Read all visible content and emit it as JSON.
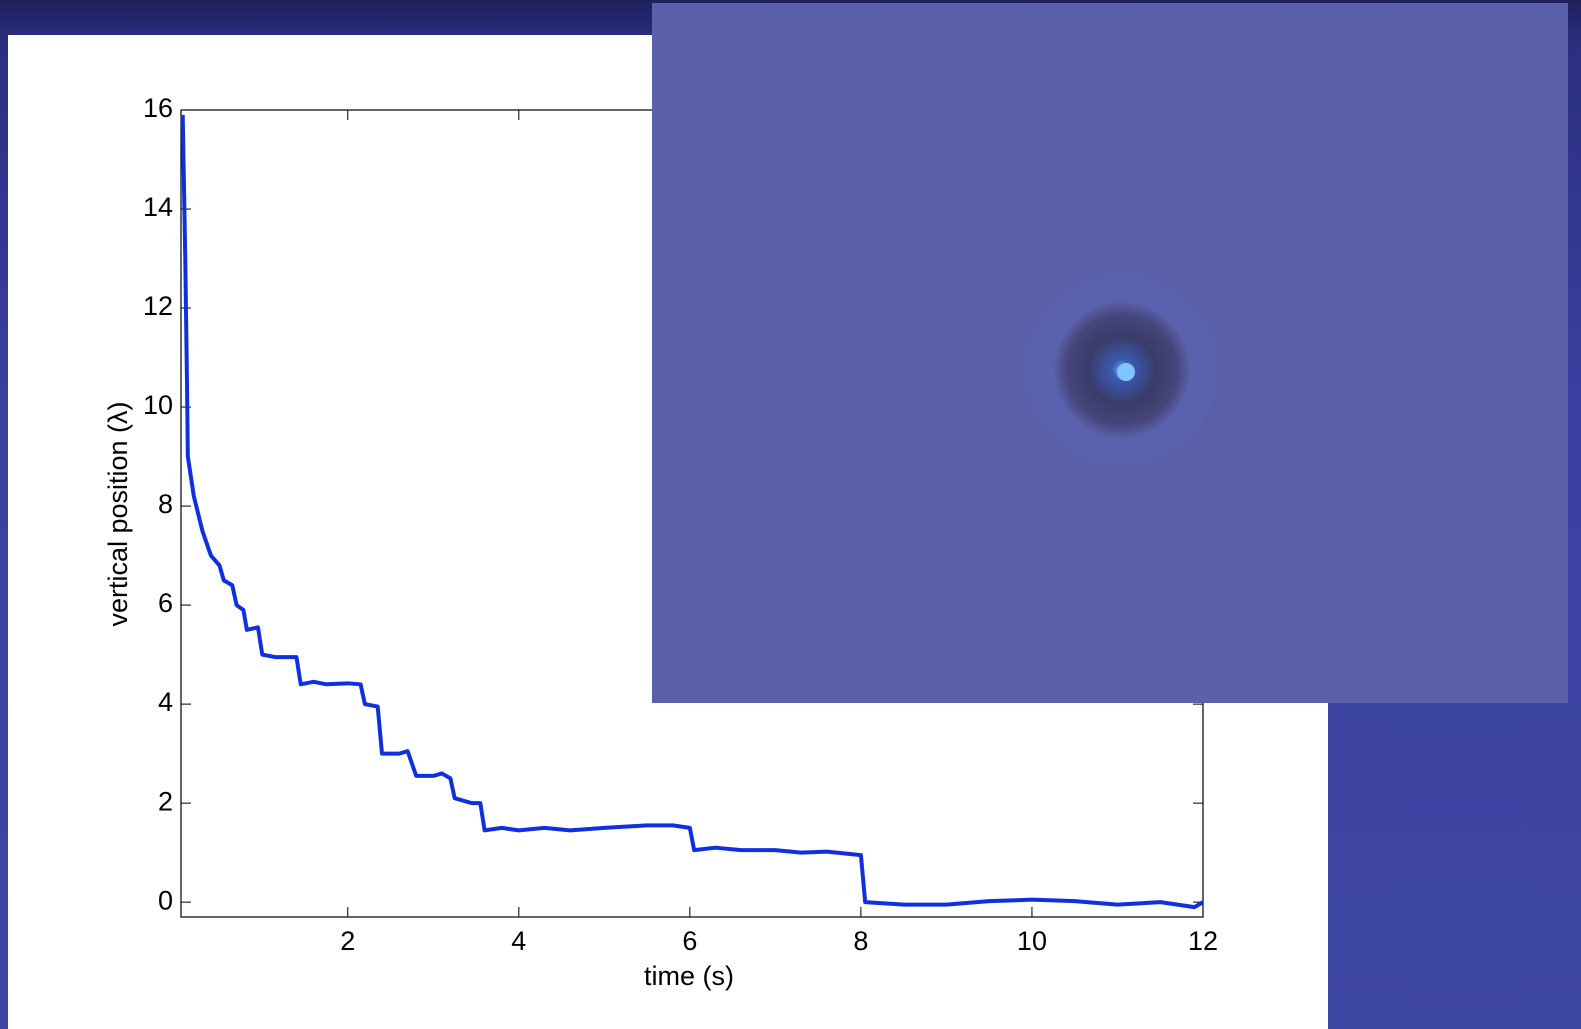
{
  "chart_data": {
    "type": "line",
    "x_label": "time (s)",
    "y_label": "vertical position (λ)",
    "x": [
      0.07,
      0.1,
      0.12,
      0.13,
      0.2,
      0.3,
      0.4,
      0.5,
      0.55,
      0.65,
      0.7,
      0.78,
      0.82,
      0.95,
      1.0,
      1.15,
      1.4,
      1.45,
      1.6,
      1.75,
      2.0,
      2.15,
      2.2,
      2.35,
      2.4,
      2.6,
      2.7,
      2.8,
      3.0,
      3.1,
      3.2,
      3.25,
      3.45,
      3.55,
      3.6,
      3.8,
      4.0,
      4.3,
      4.6,
      5.0,
      5.5,
      5.8,
      6.0,
      6.05,
      6.3,
      6.6,
      7.0,
      7.3,
      7.6,
      8.0,
      8.05,
      8.5,
      9.0,
      9.5,
      10.0,
      10.5,
      11.0,
      11.5,
      11.9,
      12.0
    ],
    "series": [
      {
        "color": "#1030e0",
        "values": [
          15.9,
          13,
          10.5,
          9,
          8.2,
          7.5,
          7.0,
          6.8,
          6.5,
          6.4,
          6.0,
          5.9,
          5.5,
          5.55,
          5.0,
          4.95,
          4.95,
          4.4,
          4.45,
          4.4,
          4.42,
          4.4,
          4.0,
          3.95,
          3.0,
          3.0,
          3.05,
          2.55,
          2.55,
          2.6,
          2.5,
          2.1,
          2.0,
          2.0,
          1.45,
          1.5,
          1.45,
          1.5,
          1.45,
          1.5,
          1.55,
          1.55,
          1.5,
          1.05,
          1.1,
          1.05,
          1.05,
          1.0,
          1.02,
          0.95,
          0.0,
          -0.05,
          -0.05,
          0.02,
          0.05,
          0.02,
          -0.05,
          0.0,
          -0.1,
          0.0
        ]
      }
    ],
    "xlim": [
      0.05,
      12
    ],
    "xticks": [
      2,
      4,
      6,
      8,
      10,
      12
    ],
    "ylim": [
      -0.3,
      16
    ],
    "yticks": [
      0,
      2,
      4,
      6,
      8,
      10,
      12,
      14,
      16
    ]
  }
}
